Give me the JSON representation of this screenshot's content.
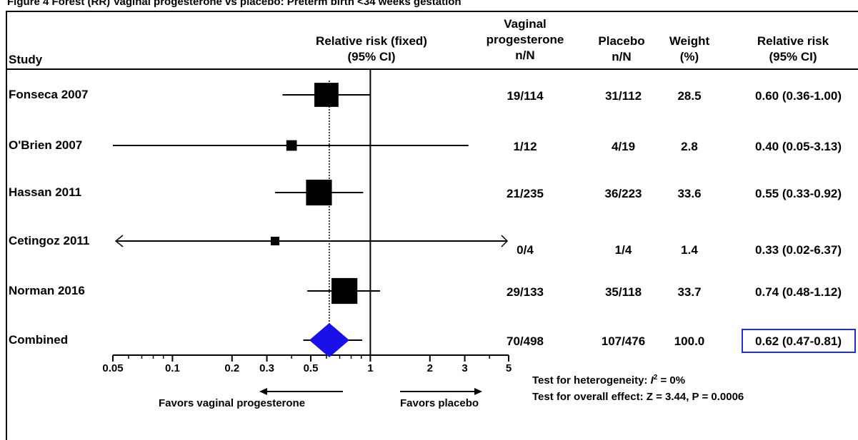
{
  "caption": "Figure 4 Forest (RR) Vaginal progesterone vs placebo: Preterm birth <34 weeks gestation",
  "headers": {
    "study": "Study",
    "forest_line1": "Relative risk (fixed)",
    "forest_line2": "(95% CI)",
    "vp_line1": "Vaginal",
    "vp_line2": "progesterone",
    "vp_line3": "n/N",
    "placebo_line1": "Placebo",
    "placebo_line2": "n/N",
    "weight_line1": "Weight",
    "weight_line2": "(%)",
    "rr_line1": "Relative risk",
    "rr_line2": "(95% CI)"
  },
  "chart_data": {
    "type": "forest",
    "x_scale": "log",
    "xlim": [
      0.05,
      5
    ],
    "x_ticks": [
      "0.05",
      "0.1",
      "0.2",
      "0.3",
      "0.5",
      "1",
      "2",
      "3",
      "5"
    ],
    "x_tick_values": [
      0.05,
      0.1,
      0.2,
      0.3,
      0.5,
      1,
      2,
      3,
      5
    ],
    "reference_line": 1,
    "pooled_estimate_line": 0.62,
    "studies": [
      {
        "study": "Fonseca 2007",
        "vp": "19/114",
        "placebo": "31/112",
        "weight": 28.5,
        "weight_label": "28.5",
        "rr": 0.6,
        "lo": 0.36,
        "hi": 1.0,
        "rr_label": "0.60 (0.36-1.00)"
      },
      {
        "study": "O'Brien 2007",
        "vp": "1/12",
        "placebo": "4/19",
        "weight": 2.8,
        "weight_label": "2.8",
        "rr": 0.4,
        "lo": 0.05,
        "hi": 3.13,
        "rr_label": "0.40 (0.05-3.13)"
      },
      {
        "study": "Hassan 2011",
        "vp": "21/235",
        "placebo": "36/223",
        "weight": 33.6,
        "weight_label": "33.6",
        "rr": 0.55,
        "lo": 0.33,
        "hi": 0.92,
        "rr_label": "0.55 (0.33-0.92)"
      },
      {
        "study": "Cetingoz 2011",
        "vp": "0/4",
        "placebo": "1/4",
        "weight": 1.4,
        "weight_label": "1.4",
        "rr": 0.33,
        "lo": 0.02,
        "hi": 6.37,
        "rr_label": "0.33 (0.02-6.37)"
      },
      {
        "study": "Norman 2016",
        "vp": "29/133",
        "placebo": "35/118",
        "weight": 33.7,
        "weight_label": "33.7",
        "rr": 0.74,
        "lo": 0.48,
        "hi": 1.12,
        "rr_label": "0.74 (0.48-1.12)"
      }
    ],
    "combined": {
      "study": "Combined",
      "vp": "70/498",
      "placebo": "107/476",
      "weight": 100.0,
      "weight_label": "100.0",
      "rr": 0.62,
      "lo": 0.47,
      "hi": 0.81,
      "rr_label": "0.62 (0.47-0.81)"
    },
    "favors_left": "Favors  vaginal progesterone",
    "favors_right": "Favors placebo",
    "test_heterogeneity_prefix": "Test for heterogeneity: ",
    "test_heterogeneity_value": " = 0%",
    "test_overall": "Test for overall effect: Z = 3.44, P = 0.0006"
  },
  "colors": {
    "diamond": "#1a10e8",
    "highlight_border": "#1f2fd1",
    "marks": "#000000"
  }
}
